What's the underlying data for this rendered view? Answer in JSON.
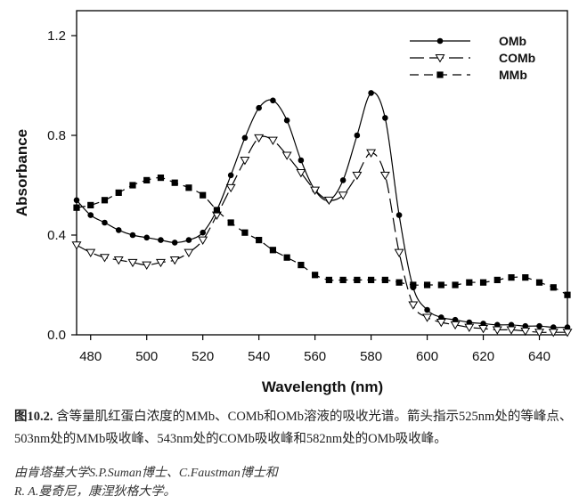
{
  "chart_data": {
    "type": "line",
    "xlabel": "Wavelength (nm)",
    "ylabel": "Absorbance",
    "xlim": [
      475,
      650
    ],
    "ylim": [
      0.0,
      1.3
    ],
    "x_ticks": [
      "480",
      "500",
      "520",
      "540",
      "560",
      "580",
      "600",
      "620",
      "640"
    ],
    "y_ticks": [
      "0.0",
      "0.4",
      "0.8",
      "1.2"
    ],
    "legend_position": "top-right",
    "series": [
      {
        "name": "OMb",
        "marker": "filled-circle",
        "line": "solid",
        "x": [
          475,
          480,
          485,
          490,
          495,
          500,
          505,
          510,
          515,
          520,
          525,
          530,
          535,
          540,
          545,
          550,
          555,
          560,
          565,
          570,
          575,
          580,
          585,
          590,
          595,
          600,
          605,
          610,
          615,
          620,
          625,
          630,
          635,
          640,
          645,
          650
        ],
        "y": [
          0.54,
          0.48,
          0.45,
          0.42,
          0.4,
          0.39,
          0.38,
          0.37,
          0.38,
          0.41,
          0.5,
          0.64,
          0.79,
          0.91,
          0.94,
          0.86,
          0.7,
          0.58,
          0.54,
          0.62,
          0.8,
          0.97,
          0.87,
          0.48,
          0.19,
          0.1,
          0.07,
          0.06,
          0.05,
          0.045,
          0.04,
          0.04,
          0.035,
          0.035,
          0.03,
          0.03
        ]
      },
      {
        "name": "COMb",
        "marker": "open-triangle-down",
        "line": "long-dash",
        "x": [
          475,
          480,
          485,
          490,
          495,
          500,
          505,
          510,
          515,
          520,
          525,
          530,
          535,
          540,
          545,
          550,
          555,
          560,
          565,
          570,
          575,
          580,
          585,
          590,
          595,
          600,
          605,
          610,
          615,
          620,
          625,
          630,
          635,
          640,
          645,
          650
        ],
        "y": [
          0.36,
          0.33,
          0.31,
          0.3,
          0.29,
          0.28,
          0.29,
          0.3,
          0.33,
          0.38,
          0.48,
          0.59,
          0.7,
          0.79,
          0.78,
          0.72,
          0.65,
          0.58,
          0.54,
          0.56,
          0.64,
          0.73,
          0.64,
          0.33,
          0.12,
          0.07,
          0.05,
          0.04,
          0.03,
          0.025,
          0.02,
          0.02,
          0.015,
          0.01,
          0.01,
          0.01
        ]
      },
      {
        "name": "MMb",
        "marker": "filled-square",
        "line": "dash",
        "x": [
          475,
          480,
          485,
          490,
          495,
          500,
          505,
          510,
          515,
          520,
          525,
          530,
          535,
          540,
          545,
          550,
          555,
          560,
          565,
          570,
          575,
          580,
          585,
          590,
          595,
          600,
          605,
          610,
          615,
          620,
          625,
          630,
          635,
          640,
          645,
          650
        ],
        "y": [
          0.51,
          0.52,
          0.54,
          0.57,
          0.6,
          0.62,
          0.63,
          0.61,
          0.59,
          0.56,
          0.5,
          0.45,
          0.41,
          0.38,
          0.34,
          0.31,
          0.28,
          0.24,
          0.22,
          0.22,
          0.22,
          0.22,
          0.22,
          0.21,
          0.2,
          0.2,
          0.2,
          0.2,
          0.21,
          0.21,
          0.22,
          0.23,
          0.23,
          0.21,
          0.19,
          0.16
        ]
      }
    ]
  },
  "caption": {
    "label": "图10.2.",
    "text": " 含等量肌红蛋白浓度的MMb、COMb和OMb溶液的吸收光谱。箭头指示525nm处的等峰点、503nm处的MMb吸收峰、543nm处的COMb吸收峰和582nm处的OMb吸收峰。"
  },
  "credit": {
    "line1": "由肯塔基大学S.P.Suman博士、C.Faustman博士和",
    "line2": "R. A.曼奇尼，康涅狄格大学。"
  }
}
